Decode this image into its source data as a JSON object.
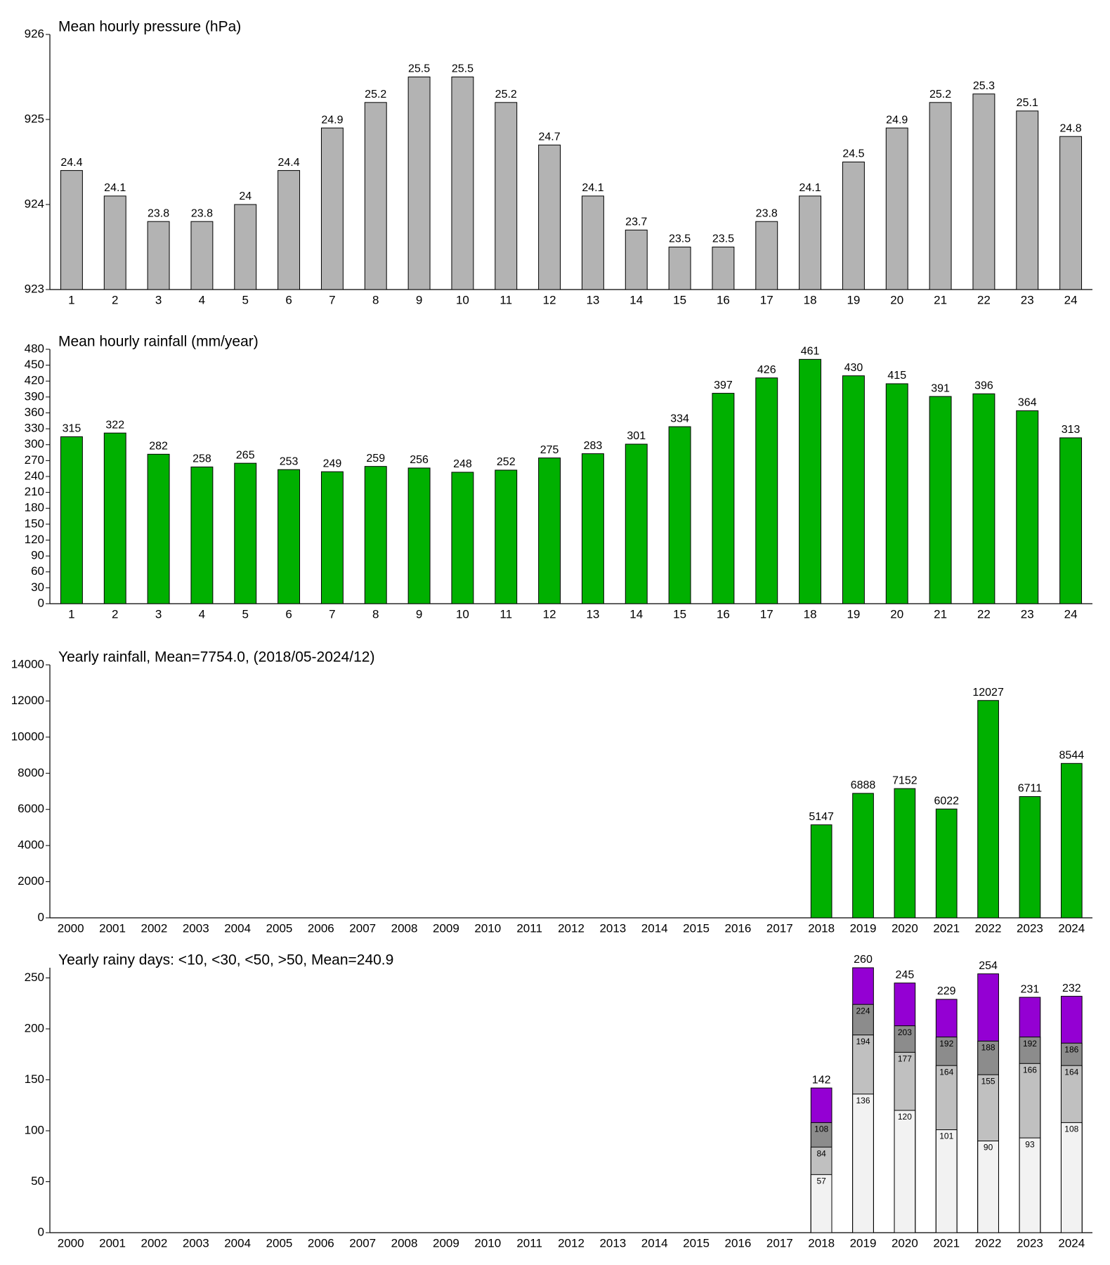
{
  "chart_data": [
    {
      "type": "bar",
      "title": "Mean hourly pressure (hPa)",
      "color": "#b3b3b3",
      "categories": [
        1,
        2,
        3,
        4,
        5,
        6,
        7,
        8,
        9,
        10,
        11,
        12,
        13,
        14,
        15,
        16,
        17,
        18,
        19,
        20,
        21,
        22,
        23,
        24
      ],
      "values": [
        924.4,
        924.1,
        923.8,
        923.8,
        924.0,
        924.4,
        924.9,
        925.2,
        925.5,
        925.5,
        925.2,
        924.7,
        924.1,
        923.7,
        923.5,
        923.5,
        923.8,
        924.1,
        924.5,
        924.9,
        925.2,
        925.3,
        925.1,
        924.8
      ],
      "value_labels": [
        "24.4",
        "24.1",
        "23.8",
        "23.8",
        "24",
        "24.4",
        "24.9",
        "25.2",
        "25.5",
        "25.5",
        "25.2",
        "24.7",
        "24.1",
        "23.7",
        "23.5",
        "23.5",
        "23.8",
        "24.1",
        "24.5",
        "24.9",
        "25.2",
        "25.3",
        "25.1",
        "24.8"
      ],
      "ylim": [
        923,
        926
      ],
      "yticks": [
        923,
        924,
        925,
        926
      ]
    },
    {
      "type": "bar",
      "title": "Mean hourly rainfall (mm/year)",
      "color": "#00b000",
      "categories": [
        1,
        2,
        3,
        4,
        5,
        6,
        7,
        8,
        9,
        10,
        11,
        12,
        13,
        14,
        15,
        16,
        17,
        18,
        19,
        20,
        21,
        22,
        23,
        24
      ],
      "values": [
        315,
        322,
        282,
        258,
        265,
        253,
        249,
        259,
        256,
        248,
        252,
        275,
        283,
        301,
        334,
        397,
        426,
        461,
        430,
        415,
        391,
        396,
        364,
        313
      ],
      "ylim": [
        0,
        480
      ],
      "yticks": [
        0,
        30,
        60,
        90,
        120,
        150,
        180,
        210,
        240,
        270,
        300,
        330,
        360,
        390,
        420,
        450,
        480
      ]
    },
    {
      "type": "bar",
      "title": "Yearly rainfall, Mean=7754.0, (2018/05-2024/12)",
      "color": "#00b000",
      "categories": [
        "2000",
        "2001",
        "2002",
        "2003",
        "2004",
        "2005",
        "2006",
        "2007",
        "2008",
        "2009",
        "2010",
        "2011",
        "2012",
        "2013",
        "2014",
        "2015",
        "2016",
        "2017",
        "2018",
        "2019",
        "2020",
        "2021",
        "2022",
        "2023",
        "2024"
      ],
      "values": [
        null,
        null,
        null,
        null,
        null,
        null,
        null,
        null,
        null,
        null,
        null,
        null,
        null,
        null,
        null,
        null,
        null,
        null,
        5147,
        6888,
        7152,
        6022,
        12027,
        6711,
        8544
      ],
      "ylim": [
        0,
        14000
      ],
      "yticks": [
        0,
        2000,
        4000,
        6000,
        8000,
        10000,
        12000,
        14000
      ]
    },
    {
      "type": "bar",
      "title": "Yearly rainy days: <10, <30, <50, >50, Mean=240.9",
      "categories": [
        "2000",
        "2001",
        "2002",
        "2003",
        "2004",
        "2005",
        "2006",
        "2007",
        "2008",
        "2009",
        "2010",
        "2011",
        "2012",
        "2013",
        "2014",
        "2015",
        "2016",
        "2017",
        "2018",
        "2019",
        "2020",
        "2021",
        "2022",
        "2023",
        "2024"
      ],
      "series": [
        {
          "color": "#f2f2f2",
          "values": [
            null,
            null,
            null,
            null,
            null,
            null,
            null,
            null,
            null,
            null,
            null,
            null,
            null,
            null,
            null,
            null,
            null,
            null,
            57,
            136,
            120,
            101,
            90,
            93,
            108
          ]
        },
        {
          "color": "#c0c0c0",
          "values": [
            null,
            null,
            null,
            null,
            null,
            null,
            null,
            null,
            null,
            null,
            null,
            null,
            null,
            null,
            null,
            null,
            null,
            null,
            84,
            194,
            177,
            164,
            155,
            166,
            164
          ]
        },
        {
          "color": "#8c8c8c",
          "values": [
            null,
            null,
            null,
            null,
            null,
            null,
            null,
            null,
            null,
            null,
            null,
            null,
            null,
            null,
            null,
            null,
            null,
            null,
            108,
            224,
            203,
            192,
            188,
            192,
            186
          ]
        },
        {
          "color": "#9400d3",
          "values": [
            null,
            null,
            null,
            null,
            null,
            null,
            null,
            null,
            null,
            null,
            null,
            null,
            null,
            null,
            null,
            null,
            null,
            null,
            142,
            260,
            245,
            229,
            254,
            231,
            232
          ]
        }
      ],
      "ylim": [
        0,
        260
      ],
      "yticks": [
        0,
        50,
        100,
        150,
        200,
        250
      ]
    }
  ]
}
